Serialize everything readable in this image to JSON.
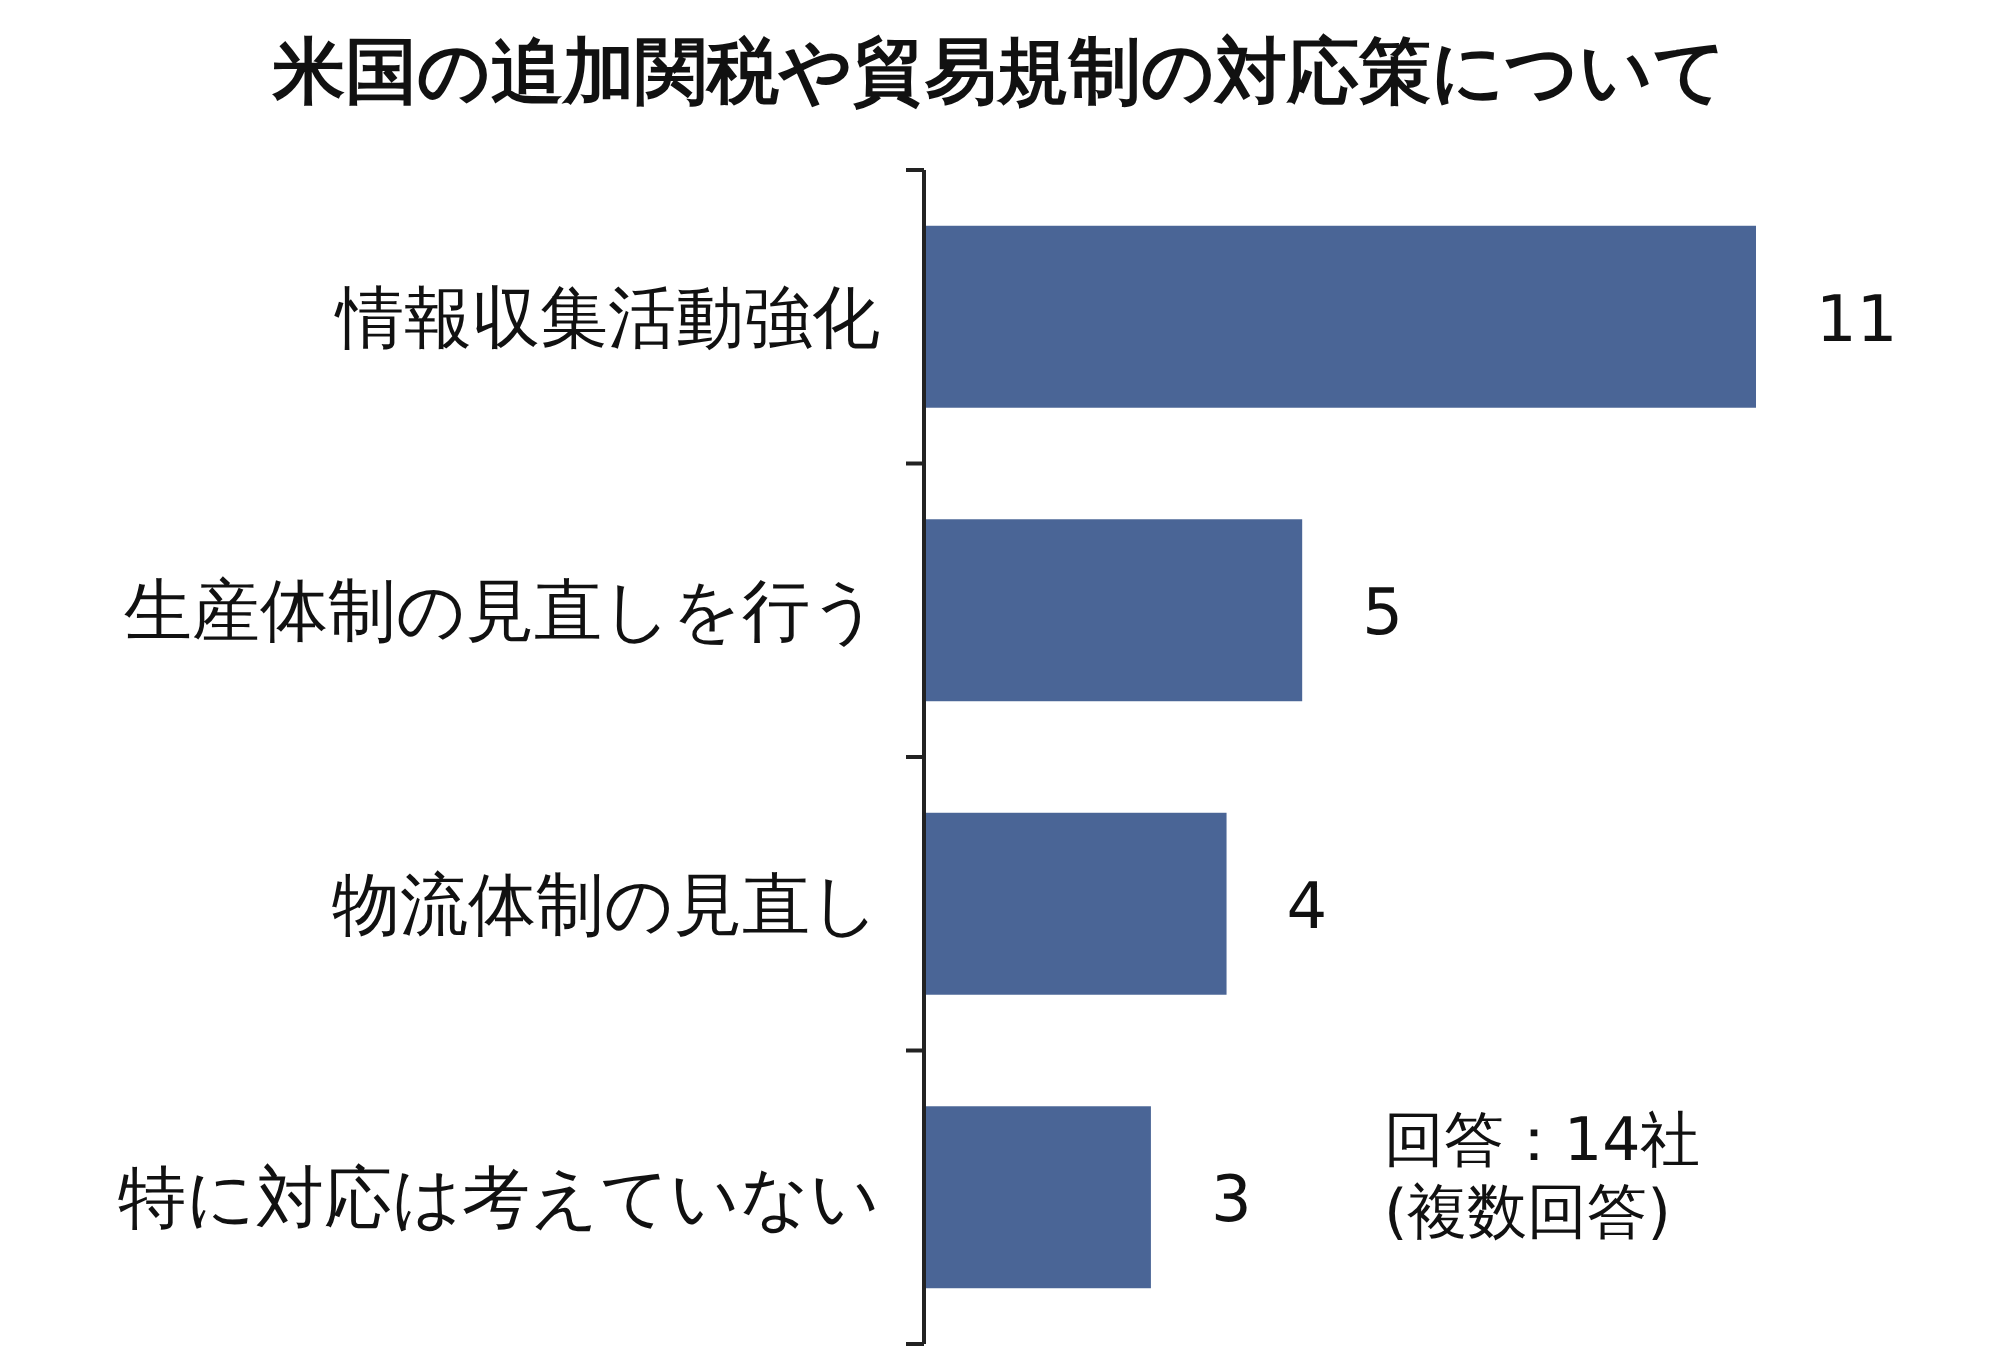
{
  "chart_data": {
    "type": "bar",
    "orientation": "horizontal",
    "title": "米国の追加関税や貿易規制の対応策について",
    "categories": [
      "情報収集活動強化",
      "生産体制の見直しを行う",
      "物流体制の見直し",
      "特に対応は考えていない"
    ],
    "values": [
      11,
      5,
      4,
      3
    ],
    "color": "#4a6596",
    "data_labels": true,
    "annotations": [
      "回答：14社",
      "(複数回答)"
    ]
  }
}
